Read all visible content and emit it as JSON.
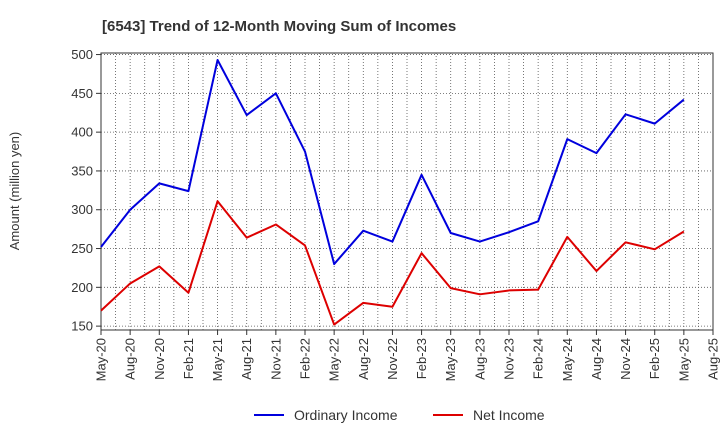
{
  "chart_data": {
    "type": "line",
    "title": "[6543]  Trend of 12-Month Moving Sum of Incomes",
    "ylabel": "Amount (million yen)",
    "xlabel": "",
    "ylim": [
      145,
      502
    ],
    "y_ticks": [
      150,
      200,
      250,
      300,
      350,
      400,
      450,
      500
    ],
    "categories": [
      "May-20",
      "Aug-20",
      "Nov-20",
      "Feb-21",
      "May-21",
      "Aug-21",
      "Nov-21",
      "Feb-22",
      "May-22",
      "Aug-22",
      "Nov-22",
      "Feb-23",
      "May-23",
      "Aug-23",
      "Nov-23",
      "Feb-24",
      "May-24",
      "Aug-24",
      "Nov-24",
      "Feb-25",
      "May-25",
      "Aug-25"
    ],
    "grid": true,
    "legend_position": "bottom-center",
    "series": [
      {
        "name": "Ordinary Income",
        "color": "#0000dd",
        "values": [
          252,
          300,
          334,
          324,
          493,
          422,
          450,
          375,
          230,
          273,
          259,
          345,
          270,
          259,
          271,
          285,
          391,
          373,
          423,
          411,
          442,
          null
        ]
      },
      {
        "name": "Net Income",
        "color": "#dd0000",
        "values": [
          170,
          205,
          227,
          193,
          311,
          264,
          281,
          254,
          152,
          180,
          175,
          244,
          199,
          191,
          196,
          197,
          265,
          221,
          258,
          249,
          272,
          null
        ]
      }
    ]
  }
}
